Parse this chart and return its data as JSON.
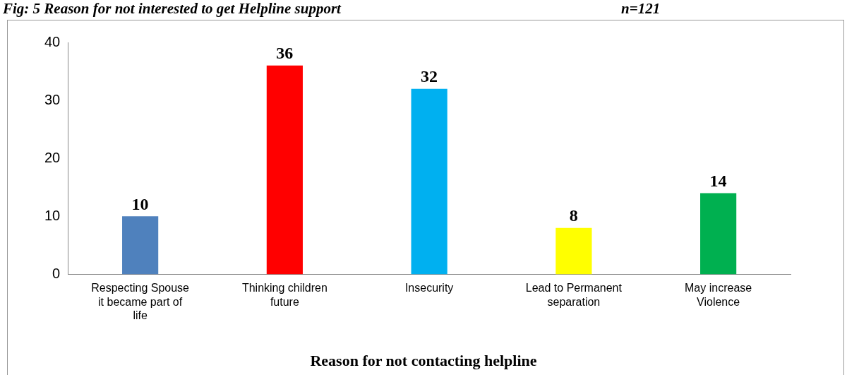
{
  "chart_data": {
    "type": "bar",
    "title": "Fig: 5 Reason for not interested to get Helpline support",
    "subtitle": "n=121",
    "xlabel": "Reason for not contacting helpline",
    "categories": [
      "Respecting Spouse it became part of life",
      "Thinking children future",
      "Insecurity",
      "Lead to Permanent separation",
      "May increase Violence"
    ],
    "values": [
      10,
      36,
      32,
      8,
      14
    ],
    "colors": [
      "#4f81bd",
      "#ff0000",
      "#00b0f0",
      "#ffff00",
      "#00b050"
    ],
    "ylim": [
      0,
      40
    ],
    "yticks": [
      0,
      10,
      20,
      30,
      40
    ],
    "grid": false,
    "legend": false,
    "data_labels": true
  }
}
